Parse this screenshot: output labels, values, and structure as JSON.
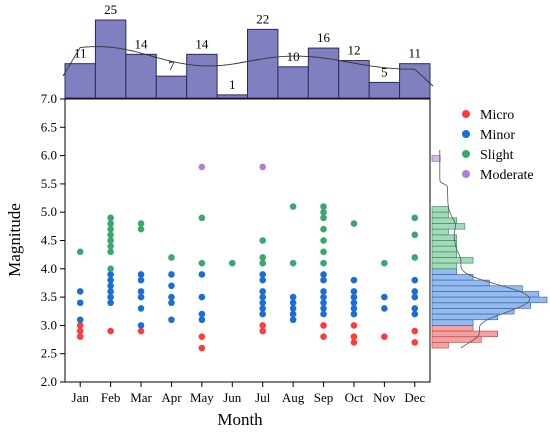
{
  "chart_data": {
    "type": "scatter",
    "xlabel": "Month",
    "ylabel": "Magnitude",
    "categories": [
      "Jan",
      "Feb",
      "Mar",
      "Apr",
      "May",
      "Jun",
      "Jul",
      "Aug",
      "Sep",
      "Oct",
      "Nov",
      "Dec"
    ],
    "ylim": [
      2.0,
      7.0
    ],
    "yticks": [
      "2.0",
      "2.5",
      "3.0",
      "3.5",
      "4.0",
      "4.5",
      "5.0",
      "5.5",
      "6.0",
      "6.5",
      "7.0"
    ],
    "grid": false,
    "legend_position": "top-right",
    "monthly_counts": [
      11,
      25,
      14,
      7,
      14,
      1,
      22,
      10,
      16,
      12,
      5,
      11
    ],
    "series": [
      {
        "name": "Micro",
        "color": "#ff3b3b",
        "points": [
          [
            "Jan",
            2.8
          ],
          [
            "Jan",
            2.9
          ],
          [
            "Jan",
            3.0
          ],
          [
            "Feb",
            2.9
          ],
          [
            "Mar",
            2.9
          ],
          [
            "May",
            2.6
          ],
          [
            "May",
            2.8
          ],
          [
            "Jul",
            2.9
          ],
          [
            "Jul",
            3.0
          ],
          [
            "Sep",
            2.8
          ],
          [
            "Sep",
            3.0
          ],
          [
            "Oct",
            2.7
          ],
          [
            "Oct",
            2.8
          ],
          [
            "Oct",
            3.0
          ],
          [
            "Nov",
            2.8
          ],
          [
            "Dec",
            2.7
          ],
          [
            "Dec",
            2.9
          ]
        ]
      },
      {
        "name": "Minor",
        "color": "#1a6fd6",
        "points": [
          [
            "Jan",
            3.1
          ],
          [
            "Jan",
            3.4
          ],
          [
            "Jan",
            3.6
          ],
          [
            "Feb",
            3.4
          ],
          [
            "Feb",
            3.5
          ],
          [
            "Feb",
            3.6
          ],
          [
            "Feb",
            3.7
          ],
          [
            "Feb",
            3.8
          ],
          [
            "Feb",
            3.9
          ],
          [
            "Mar",
            3.0
          ],
          [
            "Mar",
            3.3
          ],
          [
            "Mar",
            3.5
          ],
          [
            "Mar",
            3.6
          ],
          [
            "Mar",
            3.8
          ],
          [
            "Mar",
            3.9
          ],
          [
            "Apr",
            3.1
          ],
          [
            "Apr",
            3.4
          ],
          [
            "Apr",
            3.5
          ],
          [
            "Apr",
            3.7
          ],
          [
            "Apr",
            3.9
          ],
          [
            "May",
            3.1
          ],
          [
            "May",
            3.2
          ],
          [
            "May",
            3.5
          ],
          [
            "May",
            3.9
          ],
          [
            "Jul",
            3.2
          ],
          [
            "Jul",
            3.3
          ],
          [
            "Jul",
            3.4
          ],
          [
            "Jul",
            3.5
          ],
          [
            "Jul",
            3.6
          ],
          [
            "Jul",
            3.8
          ],
          [
            "Jul",
            3.9
          ],
          [
            "Aug",
            3.1
          ],
          [
            "Aug",
            3.2
          ],
          [
            "Aug",
            3.3
          ],
          [
            "Aug",
            3.4
          ],
          [
            "Aug",
            3.5
          ],
          [
            "Sep",
            3.2
          ],
          [
            "Sep",
            3.3
          ],
          [
            "Sep",
            3.4
          ],
          [
            "Sep",
            3.5
          ],
          [
            "Sep",
            3.6
          ],
          [
            "Sep",
            3.8
          ],
          [
            "Sep",
            3.9
          ],
          [
            "Oct",
            3.2
          ],
          [
            "Oct",
            3.3
          ],
          [
            "Oct",
            3.4
          ],
          [
            "Oct",
            3.5
          ],
          [
            "Oct",
            3.6
          ],
          [
            "Oct",
            3.8
          ],
          [
            "Nov",
            3.3
          ],
          [
            "Nov",
            3.5
          ],
          [
            "Dec",
            3.2
          ],
          [
            "Dec",
            3.3
          ],
          [
            "Dec",
            3.5
          ],
          [
            "Dec",
            3.6
          ],
          [
            "Dec",
            3.8
          ]
        ]
      },
      {
        "name": "Slight",
        "color": "#3aa76d",
        "points": [
          [
            "Jan",
            4.3
          ],
          [
            "Feb",
            4.0
          ],
          [
            "Feb",
            4.3
          ],
          [
            "Feb",
            4.4
          ],
          [
            "Feb",
            4.5
          ],
          [
            "Feb",
            4.6
          ],
          [
            "Feb",
            4.7
          ],
          [
            "Feb",
            4.8
          ],
          [
            "Feb",
            4.9
          ],
          [
            "Mar",
            4.7
          ],
          [
            "Mar",
            4.8
          ],
          [
            "Apr",
            4.2
          ],
          [
            "May",
            4.1
          ],
          [
            "May",
            4.9
          ],
          [
            "Jun",
            4.1
          ],
          [
            "Jul",
            4.1
          ],
          [
            "Jul",
            4.2
          ],
          [
            "Jul",
            4.5
          ],
          [
            "Aug",
            4.1
          ],
          [
            "Aug",
            5.1
          ],
          [
            "Sep",
            4.1
          ],
          [
            "Sep",
            4.3
          ],
          [
            "Sep",
            4.5
          ],
          [
            "Sep",
            4.7
          ],
          [
            "Sep",
            4.9
          ],
          [
            "Sep",
            5.0
          ],
          [
            "Sep",
            5.1
          ],
          [
            "Oct",
            4.8
          ],
          [
            "Nov",
            4.1
          ],
          [
            "Dec",
            4.2
          ],
          [
            "Dec",
            4.6
          ],
          [
            "Dec",
            4.9
          ]
        ]
      },
      {
        "name": "Moderate",
        "color": "#b57ccf",
        "points": [
          [
            "May",
            5.8
          ],
          [
            "Jul",
            5.8
          ]
        ]
      }
    ],
    "right_histogram": {
      "bins": [
        {
          "lo": 2.6,
          "hi": 2.7,
          "count": 2,
          "group": "Micro"
        },
        {
          "lo": 2.7,
          "hi": 2.8,
          "count": 6,
          "group": "Micro"
        },
        {
          "lo": 2.8,
          "hi": 2.9,
          "count": 8,
          "group": "Micro"
        },
        {
          "lo": 2.9,
          "hi": 3.0,
          "count": 5,
          "group": "Micro"
        },
        {
          "lo": 3.0,
          "hi": 3.1,
          "count": 5,
          "group": "Minor"
        },
        {
          "lo": 3.1,
          "hi": 3.2,
          "count": 8,
          "group": "Minor"
        },
        {
          "lo": 3.2,
          "hi": 3.3,
          "count": 10,
          "group": "Minor"
        },
        {
          "lo": 3.3,
          "hi": 3.4,
          "count": 12,
          "group": "Minor"
        },
        {
          "lo": 3.4,
          "hi": 3.5,
          "count": 14,
          "group": "Minor"
        },
        {
          "lo": 3.5,
          "hi": 3.6,
          "count": 13,
          "group": "Minor"
        },
        {
          "lo": 3.6,
          "hi": 3.7,
          "count": 11,
          "group": "Minor"
        },
        {
          "lo": 3.7,
          "hi": 3.8,
          "count": 7,
          "group": "Minor"
        },
        {
          "lo": 3.8,
          "hi": 3.9,
          "count": 5,
          "group": "Minor"
        },
        {
          "lo": 3.9,
          "hi": 4.0,
          "count": 3,
          "group": "Minor"
        },
        {
          "lo": 4.0,
          "hi": 4.1,
          "count": 3,
          "group": "Slight"
        },
        {
          "lo": 4.1,
          "hi": 4.2,
          "count": 5,
          "group": "Slight"
        },
        {
          "lo": 4.2,
          "hi": 4.3,
          "count": 3,
          "group": "Slight"
        },
        {
          "lo": 4.3,
          "hi": 4.4,
          "count": 3,
          "group": "Slight"
        },
        {
          "lo": 4.4,
          "hi": 4.5,
          "count": 3,
          "group": "Slight"
        },
        {
          "lo": 4.5,
          "hi": 4.6,
          "count": 3,
          "group": "Slight"
        },
        {
          "lo": 4.6,
          "hi": 4.7,
          "count": 2,
          "group": "Slight"
        },
        {
          "lo": 4.7,
          "hi": 4.8,
          "count": 4,
          "group": "Slight"
        },
        {
          "lo": 4.8,
          "hi": 4.9,
          "count": 3,
          "group": "Slight"
        },
        {
          "lo": 4.9,
          "hi": 5.0,
          "count": 2,
          "group": "Slight"
        },
        {
          "lo": 5.0,
          "hi": 5.1,
          "count": 2,
          "group": "Slight"
        },
        {
          "lo": 5.9,
          "hi": 6.0,
          "count": 1,
          "group": "Moderate"
        }
      ]
    }
  }
}
